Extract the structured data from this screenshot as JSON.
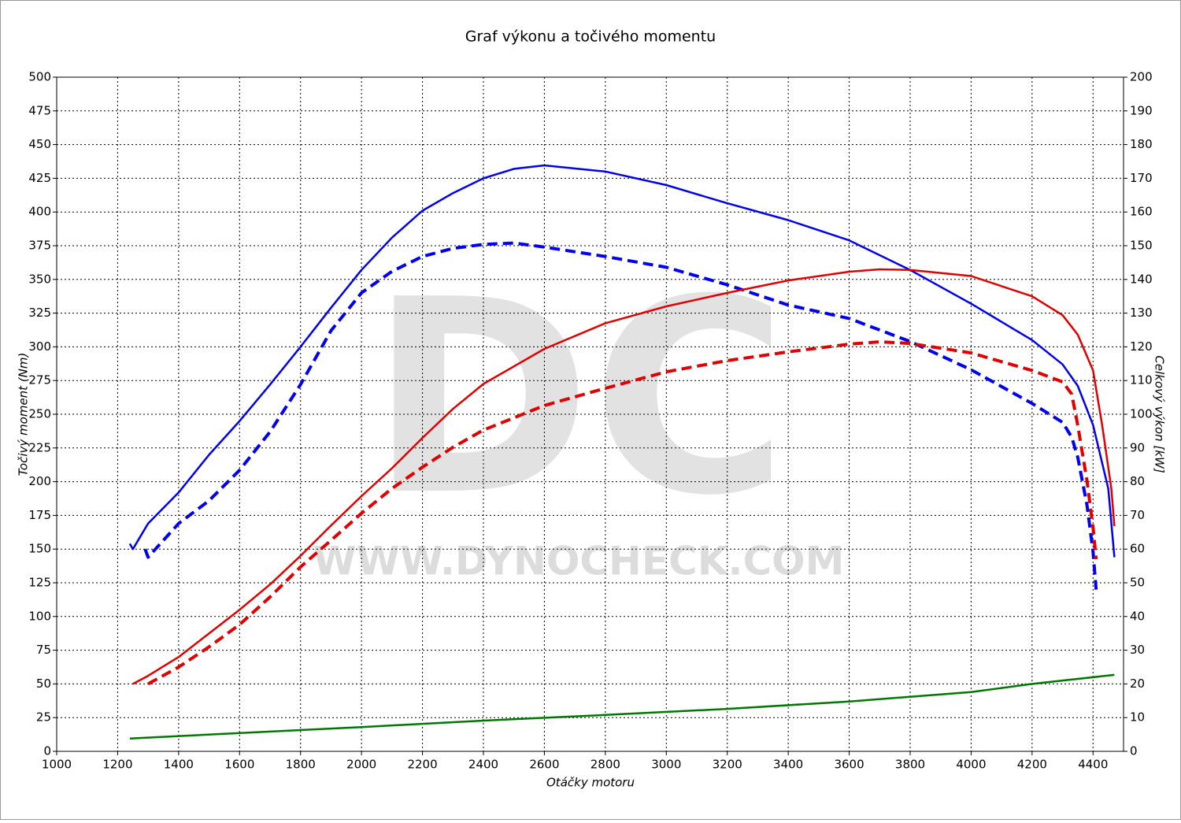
{
  "chart_data": {
    "type": "line",
    "title": "Graf výkonu a točivého momentu",
    "x_label": "Otáčky motoru",
    "y_label": "Točivý moment (Nm)",
    "y2_label": "Celkový výkon [kW]",
    "watermark": "DC",
    "watermark_url": "WWW.DYNOCHECK.COM",
    "xlim": [
      1000,
      4500
    ],
    "xticks": [
      1000,
      1200,
      1400,
      1600,
      1800,
      2000,
      2200,
      2400,
      2600,
      2800,
      3000,
      3200,
      3400,
      3600,
      3800,
      4000,
      4200,
      4400
    ],
    "ylim": [
      0,
      500
    ],
    "yticks": [
      0,
      25,
      50,
      75,
      100,
      125,
      150,
      175,
      200,
      225,
      250,
      275,
      300,
      325,
      350,
      375,
      400,
      425,
      450,
      475,
      500
    ],
    "y2lim": [
      0,
      200
    ],
    "y2ticks": [
      0,
      10,
      20,
      30,
      40,
      50,
      60,
      70,
      80,
      90,
      100,
      110,
      120,
      130,
      140,
      150,
      160,
      170,
      180,
      190,
      200
    ],
    "grid": true,
    "series": [
      {
        "color": "#0000ee",
        "dashed": false,
        "x": [
          1240,
          1250,
          1300,
          1400,
          1500,
          1600,
          1700,
          1800,
          1900,
          2000,
          2100,
          2200,
          2300,
          2400,
          2500,
          2600,
          2800,
          3000,
          3200,
          3400,
          3600,
          3800,
          4000,
          4200,
          4300,
          4350,
          4400,
          4450,
          4470
        ],
        "values": [
          154,
          150,
          169,
          192,
          220,
          245,
          272,
          300,
          329,
          357,
          381,
          401,
          414,
          425,
          432,
          434.6,
          430,
          420,
          406.5,
          394,
          379,
          357,
          332,
          305,
          287,
          271,
          242,
          195,
          144
        ]
      },
      {
        "color": "#0000ee",
        "dashed": true,
        "x": [
          1290,
          1300,
          1400,
          1500,
          1600,
          1700,
          1800,
          1900,
          2000,
          2100,
          2200,
          2300,
          2400,
          2500,
          2600,
          2800,
          3000,
          3200,
          3400,
          3600,
          3800,
          4000,
          4200,
          4300,
          4330,
          4350,
          4380,
          4400,
          4410
        ],
        "values": [
          150,
          144,
          169,
          186,
          208.5,
          237,
          272,
          312,
          340,
          356,
          367,
          373,
          376,
          377,
          374,
          367,
          359,
          346,
          331,
          321,
          304,
          283,
          258,
          244,
          233,
          218,
          183,
          148,
          120
        ]
      },
      {
        "color": "#e00000",
        "dashed": false,
        "axis": "y2",
        "x": [
          1250,
          1300,
          1400,
          1500,
          1600,
          1700,
          1800,
          1900,
          2000,
          2100,
          2200,
          2300,
          2400,
          2600,
          2800,
          3000,
          3200,
          3400,
          3600,
          3700,
          3800,
          4000,
          4200,
          4300,
          4350,
          4400,
          4430,
          4460,
          4470
        ],
        "values": [
          20,
          22.4,
          28,
          35,
          42,
          49.5,
          58,
          67,
          75.7,
          84,
          93,
          101.6,
          109,
          119.4,
          127,
          132,
          136,
          139.7,
          142.3,
          143,
          142.8,
          141,
          135,
          129.4,
          123.6,
          113,
          96.7,
          78,
          66.8
        ]
      },
      {
        "color": "#e00000",
        "dashed": true,
        "axis": "y2",
        "x": [
          1300,
          1400,
          1500,
          1600,
          1700,
          1800,
          1900,
          2000,
          2100,
          2200,
          2300,
          2400,
          2600,
          2800,
          3000,
          3200,
          3400,
          3600,
          3700,
          3800,
          4000,
          4200,
          4300,
          4330,
          4350,
          4380,
          4400,
          4410
        ],
        "values": [
          20,
          25,
          31,
          37.6,
          45.8,
          54.7,
          62.6,
          70.6,
          78,
          84.3,
          90.2,
          95.3,
          102.6,
          107.7,
          112.6,
          115.9,
          118.5,
          120.8,
          121.5,
          121,
          118.2,
          113,
          109.6,
          106,
          96.7,
          80.4,
          66.4,
          57
        ]
      },
      {
        "color": "#007700",
        "dashed": false,
        "x": [
          1240,
          2000,
          2400,
          2800,
          3200,
          3600,
          4000,
          4200,
          4470
        ],
        "values": [
          9.5,
          18,
          22.8,
          27,
          31.5,
          37,
          44,
          50,
          56.7
        ]
      }
    ]
  }
}
